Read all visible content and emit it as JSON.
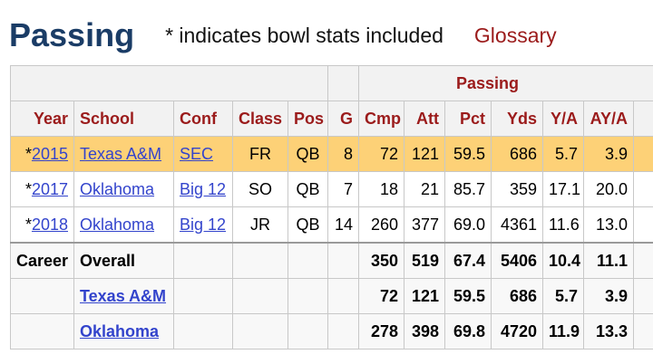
{
  "header": {
    "title": "Passing",
    "note": "* indicates bowl stats included",
    "glossary": "Glossary"
  },
  "table": {
    "group_label": "Passing",
    "columns": [
      "Year",
      "School",
      "Conf",
      "Class",
      "Pos",
      "G",
      "Cmp",
      "Att",
      "Pct",
      "Yds",
      "Y/A",
      "AY/A"
    ],
    "rows": [
      {
        "star": "*",
        "year": "2015",
        "school": "Texas A&M",
        "conf": "SEC",
        "class": "FR",
        "pos": "QB",
        "g": "8",
        "cmp": "72",
        "att": "121",
        "pct": "59.5",
        "yds": "686",
        "ya": "5.7",
        "aya": "3.9"
      },
      {
        "star": "*",
        "year": "2017",
        "school": "Oklahoma",
        "conf": "Big 12",
        "class": "SO",
        "pos": "QB",
        "g": "7",
        "cmp": "18",
        "att": "21",
        "pct": "85.7",
        "yds": "359",
        "ya": "17.1",
        "aya": "20.0"
      },
      {
        "star": "*",
        "year": "2018",
        "school": "Oklahoma",
        "conf": "Big 12",
        "class": "JR",
        "pos": "QB",
        "g": "14",
        "cmp": "260",
        "att": "377",
        "pct": "69.0",
        "yds": "4361",
        "ya": "11.6",
        "aya": "13.0"
      }
    ],
    "footer": [
      {
        "label": "Career",
        "name": "Overall",
        "cmp": "350",
        "att": "519",
        "pct": "67.4",
        "yds": "5406",
        "ya": "10.4",
        "aya": "11.1"
      },
      {
        "label": "",
        "name": "Texas A&M",
        "cmp": "72",
        "att": "121",
        "pct": "59.5",
        "yds": "686",
        "ya": "5.7",
        "aya": "3.9"
      },
      {
        "label": "",
        "name": "Oklahoma",
        "cmp": "278",
        "att": "398",
        "pct": "69.8",
        "yds": "4720",
        "ya": "11.9",
        "aya": "13.3"
      }
    ]
  },
  "colors": {
    "title": "#1a3c66",
    "header_red": "#9b1b1b",
    "highlight_row": "#fdd177",
    "link": "#3344cc"
  }
}
